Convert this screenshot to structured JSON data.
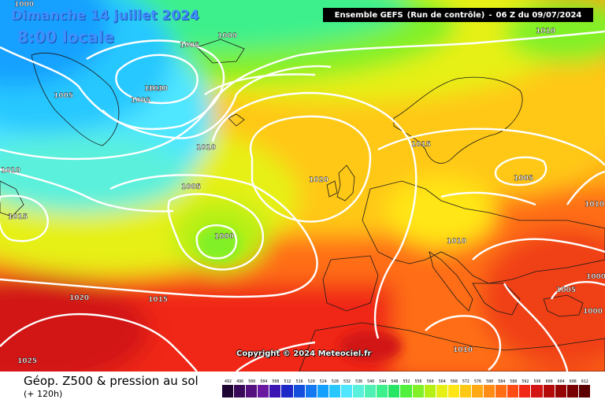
{
  "map": {
    "date_title": "Dimanche 14 juillet 2024",
    "time_title": "8:00 locale",
    "run_info": {
      "model": "Ensemble GEFS",
      "run": "(Run de contrôle)",
      "separator": "-",
      "time": "06 Z du 09/07/2024"
    },
    "copyright": "Copyright © 2024 Meteociel.fr",
    "isobar_labels": [
      "1000",
      "1000",
      "1005",
      "1005",
      "1005",
      "1010",
      "1010",
      "1010",
      "1010",
      "1005",
      "1015",
      "1000",
      "1015",
      "1020",
      "1015",
      "1010",
      "1005",
      "1020",
      "1010",
      "1025",
      "1010",
      "1000",
      "1005",
      "1000",
      "1010"
    ]
  },
  "footer": {
    "title": "Géop. Z500 & pression au sol",
    "subtitle": "(+ 120h)"
  },
  "scale": {
    "labels": [
      "492",
      "496",
      "500",
      "504",
      "508",
      "512",
      "516",
      "520",
      "524",
      "528",
      "532",
      "536",
      "540",
      "544",
      "548",
      "552",
      "556",
      "560",
      "564",
      "568",
      "572",
      "576",
      "580",
      "584",
      "588",
      "592",
      "596",
      "600",
      "604",
      "608",
      "612"
    ],
    "colors": [
      "#1e0532",
      "#3a0a5a",
      "#551080",
      "#6a18a0",
      "#3c14b4",
      "#1e28c8",
      "#1450dc",
      "#1478f0",
      "#14a0ff",
      "#28c8ff",
      "#50e6ff",
      "#5af0dc",
      "#50f0b4",
      "#3cf08c",
      "#28e664",
      "#50f03c",
      "#82f028",
      "#b4f014",
      "#e6f014",
      "#ffe614",
      "#ffc814",
      "#ffaa14",
      "#ff8c14",
      "#ff6e14",
      "#ff4b14",
      "#f02814",
      "#d21414",
      "#b40a0a",
      "#960505",
      "#780000",
      "#5a0000"
    ]
  }
}
